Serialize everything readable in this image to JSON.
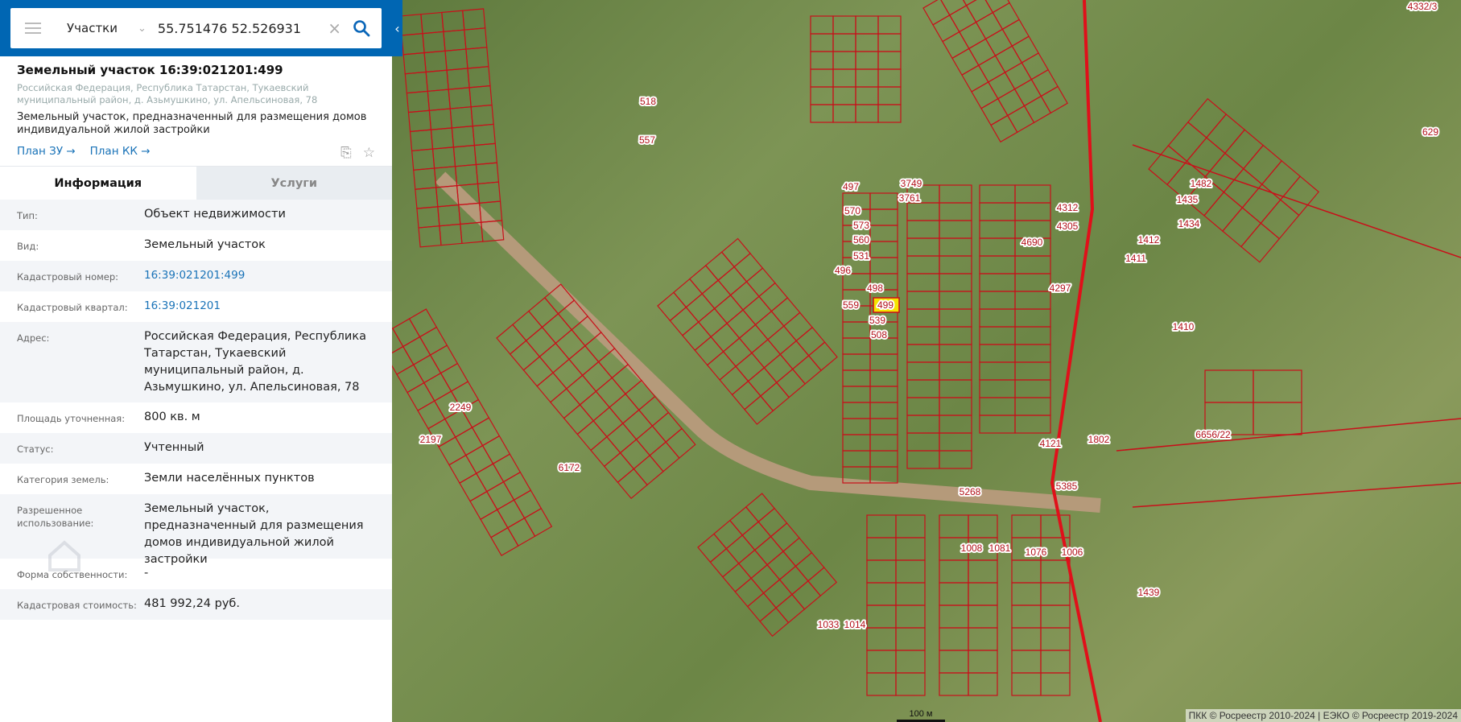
{
  "search": {
    "layer": "Участки",
    "query": "55.751476 52.526931"
  },
  "parcel": {
    "title": "Земельный участок 16:39:021201:499",
    "address": "Российская Федерация, Республика Татарстан, Тукаевский муниципальный район, д. Азьмушкино, ул. Апельсиновая, 78",
    "description": "Земельный участок, предназначенный для размещения домов индивидуальной жилой застройки",
    "links": [
      "План ЗУ →",
      "План КК →"
    ]
  },
  "tabs": [
    {
      "label": "Информация",
      "active": true
    },
    {
      "label": "Услуги",
      "active": false
    }
  ],
  "info": [
    {
      "label": "Тип:",
      "value": "Объект недвижимости"
    },
    {
      "label": "Вид:",
      "value": "Земельный участок"
    },
    {
      "label": "Кадастровый номер:",
      "value": "16:39:021201:499",
      "link": true
    },
    {
      "label": "Кадастровый квартал:",
      "value": "16:39:021201",
      "link": true
    },
    {
      "label": "Адрес:",
      "value": "Российская Федерация, Республика Татарстан, Тукаевский муниципальный район, д. Азьмушкино, ул. Апельсиновая, 78"
    },
    {
      "label": "Площадь уточненная:",
      "value": "800 кв. м"
    },
    {
      "label": "Статус:",
      "value": "Учтенный"
    },
    {
      "label": "Категория земель:",
      "value": "Земли населённых пунктов"
    },
    {
      "label": "Разрешенное использование:",
      "value": "Земельный участок, предназначенный для размещения домов индивидуальной жилой застройки"
    },
    {
      "label": "Форма собственности:",
      "value": "-"
    },
    {
      "label": "Кадастровая стоимость:",
      "value": "481 992,24 руб."
    }
  ],
  "watermark": "ДОМКЛИК",
  "map": {
    "selected_parcel": "499",
    "highlight_color": "#f5e400",
    "boundary_color": "#c8101a",
    "labels": [
      "518",
      "557",
      "497",
      "570",
      "573",
      "560",
      "531",
      "496",
      "498",
      "499",
      "559",
      "539",
      "508",
      "6172",
      "4690",
      "1410",
      "5268",
      "5385",
      "4332/3",
      "629",
      "1482",
      "1435",
      "1434",
      "1412",
      "1411",
      "6656/22",
      "1802",
      "1439",
      "2197",
      "2249",
      "3749",
      "3761",
      "4312",
      "4305",
      "4297",
      "4121",
      "1033",
      "1014",
      "1008",
      "1081",
      "1076",
      "1006"
    ],
    "scale": "100 м",
    "attribution": "ПКК © Росреестр 2010-2024 | ЕЭКО © Росреестр 2019-2024"
  }
}
